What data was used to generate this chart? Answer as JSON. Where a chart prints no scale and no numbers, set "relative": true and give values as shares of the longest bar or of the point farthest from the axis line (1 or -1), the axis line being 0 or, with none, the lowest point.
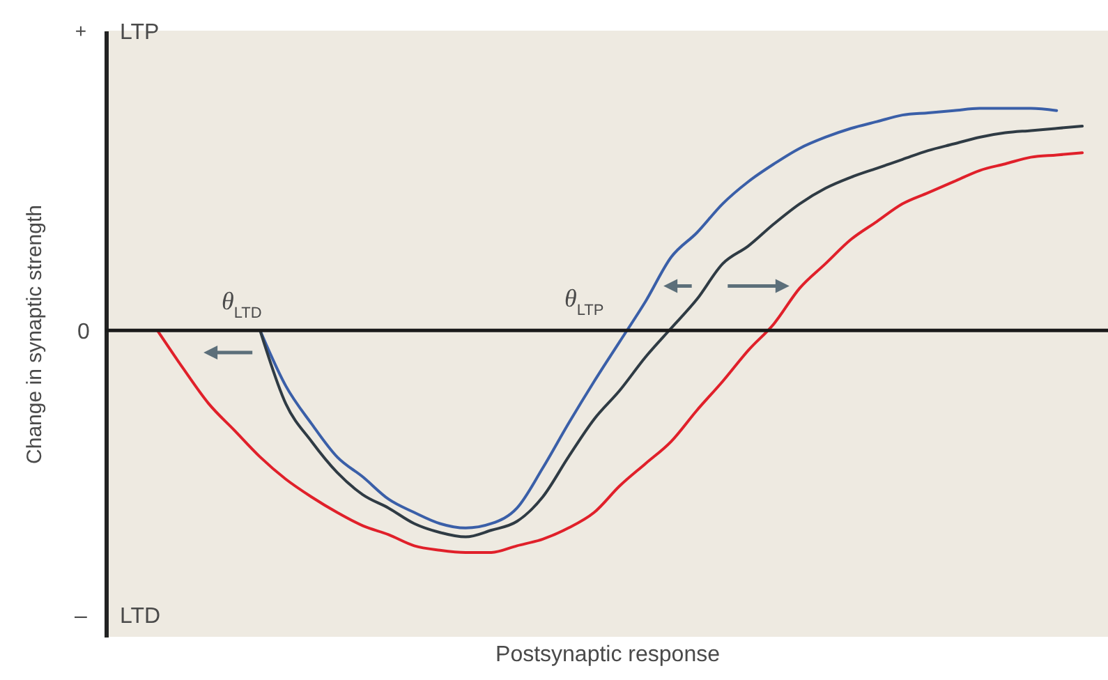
{
  "chart_data": {
    "type": "line",
    "relative": true,
    "xlabel": "Postsynaptic response",
    "ylabel": "Change in synaptic strength",
    "categories": [
      null,
      null,
      null,
      null,
      null,
      null,
      null,
      null,
      null,
      null,
      null,
      null,
      null,
      null,
      null,
      null,
      null,
      null,
      null,
      null,
      null,
      null,
      null,
      null,
      null,
      null,
      null,
      null,
      null,
      null,
      null,
      null,
      null,
      null,
      null,
      null,
      null,
      null,
      null,
      null
    ],
    "series": [
      {
        "color": "#3a5fa8",
        "values": [
          null,
          null,
          null,
          null,
          null,
          null,
          0,
          -0.25,
          -0.42,
          -0.57,
          -0.66,
          -0.76,
          -0.82,
          -0.87,
          -0.89,
          -0.87,
          -0.8,
          -0.62,
          -0.42,
          -0.23,
          -0.05,
          0.13,
          0.33,
          0.44,
          0.57,
          0.67,
          0.75,
          0.82,
          0.87,
          0.91,
          0.94,
          0.97,
          0.98,
          0.99,
          1,
          1,
          1,
          0.99,
          null,
          null
        ]
      },
      {
        "color": "#2f3b44",
        "values": [
          null,
          null,
          null,
          null,
          null,
          null,
          0,
          -0.33,
          -0.5,
          -0.64,
          -0.74,
          -0.8,
          -0.87,
          -0.91,
          -0.93,
          -0.9,
          -0.86,
          -0.75,
          -0.57,
          -0.4,
          -0.27,
          -0.12,
          0.01,
          0.14,
          0.3,
          0.38,
          0.48,
          0.57,
          0.64,
          0.69,
          0.73,
          0.77,
          0.81,
          0.84,
          0.87,
          0.89,
          0.9,
          0.91,
          0.92,
          null
        ]
      },
      {
        "color": "#e0202a",
        "values": [
          null,
          null,
          0,
          -0.17,
          -0.33,
          -0.45,
          -0.57,
          -0.67,
          -0.75,
          -0.82,
          -0.88,
          -0.92,
          -0.97,
          -0.99,
          -1,
          -1,
          -0.97,
          -0.94,
          -0.89,
          -0.82,
          -0.7,
          -0.6,
          -0.5,
          -0.36,
          -0.23,
          -0.09,
          0.03,
          0.19,
          0.3,
          0.41,
          0.49,
          0.57,
          0.62,
          0.67,
          0.72,
          0.75,
          0.78,
          0.79,
          0.8,
          null
        ]
      }
    ],
    "annotations": [
      "LTP",
      "LTD",
      "θ$_{LTD}$",
      "θ$_{LTP}$",
      "+",
      "0",
      "–"
    ]
  }
}
